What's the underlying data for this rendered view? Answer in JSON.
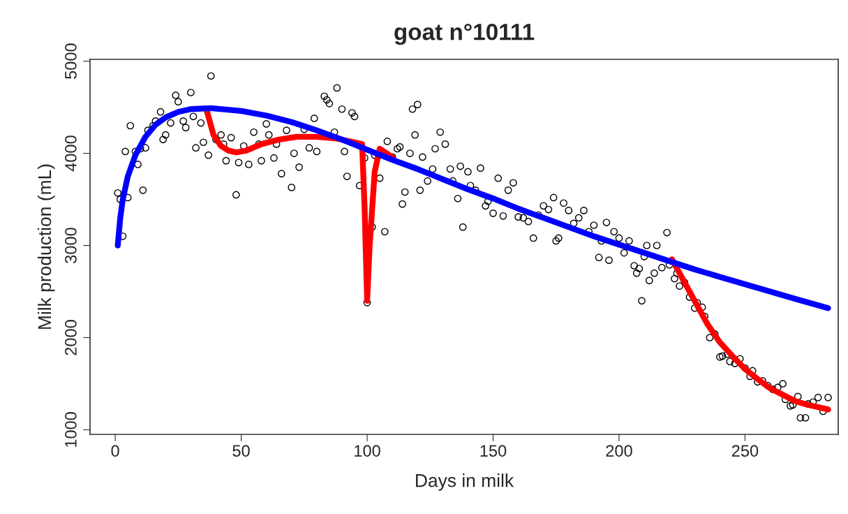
{
  "chart_data": {
    "type": "scatter",
    "title": "goat n°10111",
    "xlabel": "Days in milk",
    "ylabel": "Milk production (mL)",
    "xlim": [
      -10,
      287
    ],
    "ylim": [
      950,
      5020
    ],
    "xticks": [
      0,
      50,
      100,
      150,
      200,
      250
    ],
    "yticks": [
      1000,
      2000,
      3000,
      4000,
      5000
    ],
    "grid": false,
    "legend": false,
    "series": [
      {
        "color": "#000000",
        "marker": "circle",
        "x": [
          1,
          2,
          3,
          4,
          5,
          6,
          8,
          9,
          10,
          11,
          12,
          13,
          15,
          16,
          18,
          19,
          20,
          22,
          24,
          25,
          27,
          28,
          30,
          31,
          32,
          34,
          35,
          37,
          38,
          40,
          42,
          43,
          44,
          46,
          48,
          49,
          51,
          53,
          55,
          57,
          58,
          60,
          61,
          63,
          64,
          66,
          68,
          70,
          71,
          73,
          75,
          77,
          79,
          80,
          83,
          84,
          85,
          87,
          88,
          90,
          91,
          92,
          94,
          95,
          97,
          99,
          100,
          102,
          103,
          105,
          107,
          108,
          110,
          112,
          113,
          114,
          115,
          117,
          118,
          119,
          120,
          121,
          122,
          124,
          126,
          127,
          129,
          131,
          133,
          134,
          136,
          137,
          138,
          140,
          141,
          143,
          145,
          147,
          148,
          150,
          152,
          154,
          156,
          158,
          160,
          162,
          164,
          166,
          168,
          170,
          172,
          174,
          175,
          176,
          178,
          180,
          182,
          184,
          186,
          188,
          190,
          192,
          193,
          195,
          196,
          198,
          200,
          202,
          204,
          206,
          207,
          208,
          209,
          210,
          211,
          212,
          214,
          215,
          217,
          219,
          220,
          222,
          223,
          224,
          226,
          228,
          230,
          231,
          233,
          234,
          236,
          238,
          240,
          241,
          243,
          244,
          246,
          248,
          250,
          252,
          253,
          255,
          257,
          259,
          261,
          263,
          265,
          266,
          268,
          269,
          271,
          272,
          274,
          275,
          277,
          279,
          281,
          283
        ],
        "values": [
          3570,
          3500,
          3100,
          4020,
          3520,
          4300,
          4020,
          3880,
          4050,
          3600,
          4060,
          4250,
          4300,
          4350,
          4450,
          4150,
          4200,
          4330,
          4630,
          4560,
          4350,
          4280,
          4660,
          4400,
          4060,
          4330,
          4120,
          3980,
          4840,
          4150,
          4200,
          4100,
          3920,
          4170,
          3550,
          3900,
          4080,
          3880,
          4230,
          4100,
          3920,
          4320,
          4200,
          3950,
          4100,
          3780,
          4250,
          3630,
          4000,
          3850,
          4260,
          4060,
          4380,
          4020,
          4620,
          4580,
          4540,
          4230,
          4710,
          4480,
          4020,
          3750,
          4440,
          4400,
          3650,
          3950,
          2380,
          3200,
          3980,
          3730,
          3150,
          4130,
          3960,
          4050,
          4070,
          3450,
          3580,
          4000,
          4480,
          4200,
          4530,
          3600,
          3960,
          3700,
          3830,
          4050,
          4230,
          4100,
          3830,
          3700,
          3510,
          3860,
          3200,
          3800,
          3650,
          3600,
          3840,
          3430,
          3480,
          3350,
          3730,
          3320,
          3600,
          3680,
          3310,
          3300,
          3260,
          3080,
          3330,
          3430,
          3390,
          3520,
          3050,
          3080,
          3460,
          3380,
          3240,
          3300,
          3380,
          3150,
          3220,
          2870,
          3050,
          3250,
          2840,
          3150,
          3080,
          2920,
          3050,
          2780,
          2700,
          2750,
          2400,
          2880,
          3000,
          2620,
          2700,
          3000,
          2760,
          3140,
          2790,
          2640,
          2700,
          2560,
          2600,
          2440,
          2320,
          2380,
          2330,
          2230,
          2000,
          2040,
          1790,
          1800,
          1820,
          1740,
          1720,
          1770,
          1670,
          1580,
          1640,
          1520,
          1530,
          1480,
          1440,
          1460,
          1500,
          1330,
          1260,
          1270,
          1360,
          1130,
          1130,
          1280,
          1300,
          1350,
          1200,
          1350
        ]
      },
      {
        "type": "line",
        "color": "#ff0000",
        "x": [
          36,
          37,
          39,
          42,
          45,
          48,
          52,
          58,
          65,
          72,
          80,
          88,
          95,
          98,
          99,
          100,
          101,
          103,
          105,
          110,
          160,
          221,
          225,
          230,
          235,
          240,
          245,
          250,
          255,
          260,
          265,
          270,
          275,
          280,
          283
        ],
        "values": [
          4490,
          4400,
          4200,
          4080,
          4030,
          4010,
          4030,
          4100,
          4150,
          4180,
          4180,
          4160,
          4120,
          4100,
          3400,
          2400,
          3000,
          3800,
          4050,
          3960,
          null,
          2850,
          2650,
          2400,
          2150,
          1950,
          1800,
          1660,
          1550,
          1450,
          1380,
          1310,
          1270,
          1240,
          1220
        ]
      },
      {
        "type": "line",
        "color": "#0000ff",
        "x": [
          1,
          2,
          3,
          5,
          8,
          12,
          16,
          20,
          25,
          30,
          38,
          50,
          60,
          70,
          80,
          90,
          100,
          110,
          120,
          130,
          140,
          150,
          160,
          170,
          180,
          190,
          200,
          210,
          220,
          230,
          240,
          250,
          260,
          270,
          283
        ],
        "values": [
          3000,
          3300,
          3500,
          3750,
          3980,
          4180,
          4310,
          4390,
          4450,
          4480,
          4490,
          4460,
          4410,
          4340,
          4250,
          4150,
          4040,
          3930,
          3830,
          3720,
          3610,
          3510,
          3400,
          3300,
          3200,
          3100,
          3010,
          2920,
          2830,
          2740,
          2660,
          2580,
          2500,
          2420,
          2320
        ]
      }
    ]
  }
}
